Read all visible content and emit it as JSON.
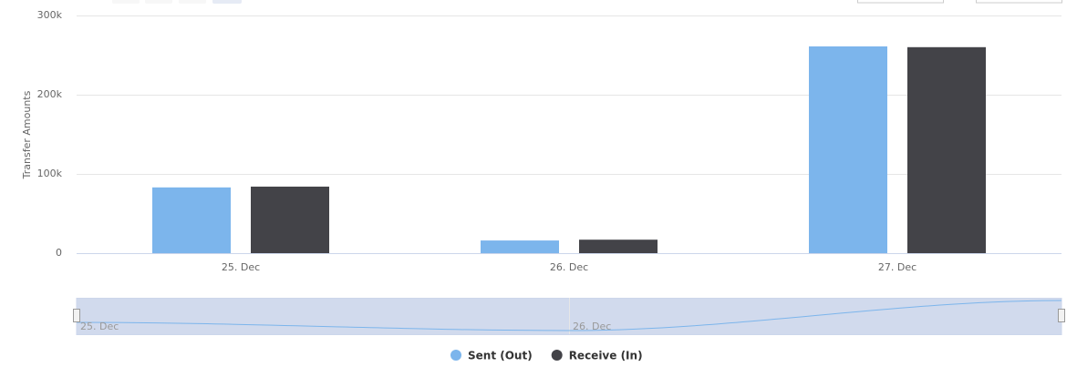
{
  "chart_data": {
    "type": "bar",
    "y_axis_label": "Transfer Amounts",
    "categories": [
      "25. Dec",
      "26. Dec",
      "27. Dec"
    ],
    "series": [
      {
        "name": "Sent (Out)",
        "color": "#7cb5ec",
        "values": [
          83000,
          16000,
          261000
        ]
      },
      {
        "name": "Receive (In)",
        "color": "#434348",
        "values": [
          84000,
          17000,
          260000
        ]
      }
    ],
    "ylim": [
      0,
      300000
    ],
    "yticks": [
      0,
      {
        "value": 100000,
        "label": "100k"
      },
      {
        "value": 200000,
        "label": "200k"
      },
      {
        "value": 300000,
        "label": "300k"
      }
    ],
    "grid": true
  }
}
